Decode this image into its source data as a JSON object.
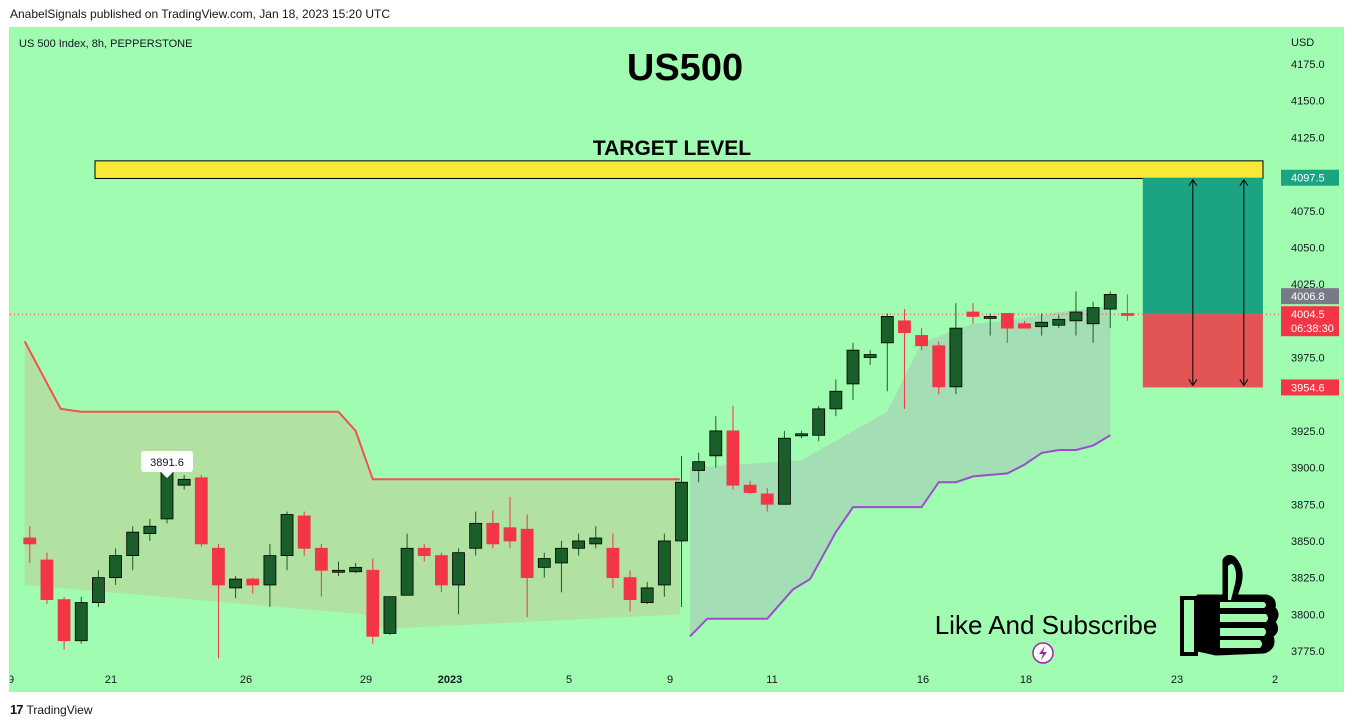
{
  "header": {
    "published": "AnabelSignals published on TradingView.com, Jan 18, 2023 15:20 UTC"
  },
  "footer": {
    "logo": "17",
    "brand": "TradingView"
  },
  "colors": {
    "background": "#a0fcb1",
    "bull_candle": "#1a5e2a",
    "bear_candle": "#f23645",
    "resistance_line": "#f05350",
    "support_line": "#9c4dcc",
    "target_band": "#f7e935",
    "profit_zone": "#1ca382",
    "loss_zone": "#e35454",
    "last_price": "#f23645"
  },
  "chart_data": {
    "type": "candlestick",
    "symbol_info": "US 500 Index, 8h, PEPPERSTONE",
    "title": "US500",
    "currency": "USD",
    "yticks": [
      "4175.0",
      "4150.0",
      "4125.0",
      "4075.0",
      "4050.0",
      "4025.0",
      "3975.0",
      "3925.0",
      "3900.0",
      "3875.0",
      "3850.0",
      "3825.0",
      "3800.0",
      "3775.0"
    ],
    "ylim": [
      3766,
      4187
    ],
    "xticks": [
      "9",
      "21",
      "26",
      "29",
      "2023",
      "5",
      "9",
      "11",
      "16",
      "18",
      "23",
      "2"
    ],
    "candles": [
      [
        3852,
        3848,
        3860,
        3835
      ],
      [
        3837,
        3810,
        3842,
        3807
      ],
      [
        3810,
        3782,
        3812,
        3776
      ],
      [
        3782,
        3808,
        3812,
        3780
      ],
      [
        3808,
        3825,
        3830,
        3805
      ],
      [
        3825,
        3840,
        3845,
        3820
      ],
      [
        3840,
        3856,
        3860,
        3830
      ],
      [
        3855,
        3860,
        3865,
        3850
      ],
      [
        3865,
        3897,
        3900,
        3862
      ],
      [
        3888,
        3892,
        3895,
        3885
      ],
      [
        3893,
        3848,
        3895,
        3846
      ],
      [
        3845,
        3820,
        3848,
        3770
      ],
      [
        3818,
        3824,
        3826,
        3811
      ],
      [
        3824,
        3820,
        3825,
        3814
      ],
      [
        3820,
        3840,
        3848,
        3805
      ],
      [
        3840,
        3868,
        3870,
        3830
      ],
      [
        3867,
        3845,
        3870,
        3840
      ],
      [
        3845,
        3830,
        3848,
        3812
      ],
      [
        3829,
        3830,
        3836,
        3826
      ],
      [
        3829,
        3832,
        3835,
        3828
      ],
      [
        3830,
        3785,
        3838,
        3780
      ],
      [
        3787,
        3812,
        3812,
        3786
      ],
      [
        3813,
        3845,
        3855,
        3813
      ],
      [
        3845,
        3840,
        3848,
        3836
      ],
      [
        3840,
        3820,
        3842,
        3815
      ],
      [
        3820,
        3842,
        3845,
        3800
      ],
      [
        3845,
        3862,
        3870,
        3840
      ],
      [
        3862,
        3848,
        3871,
        3845
      ],
      [
        3859,
        3850,
        3880,
        3845
      ],
      [
        3858,
        3825,
        3868,
        3798
      ],
      [
        3832,
        3838,
        3842,
        3825
      ],
      [
        3835,
        3845,
        3850,
        3815
      ],
      [
        3845,
        3850,
        3855,
        3840
      ],
      [
        3848,
        3852,
        3860,
        3845
      ],
      [
        3845,
        3825,
        3855,
        3818
      ],
      [
        3825,
        3810,
        3830,
        3802
      ],
      [
        3808,
        3818,
        3822,
        3807
      ],
      [
        3820,
        3850,
        3855,
        3812
      ],
      [
        3850,
        3890,
        3908,
        3805
      ],
      [
        3898,
        3904,
        3910,
        3890
      ],
      [
        3908,
        3925,
        3935,
        3900
      ],
      [
        3925,
        3888,
        3942,
        3885
      ],
      [
        3888,
        3883,
        3891,
        3882
      ],
      [
        3882,
        3875,
        3886,
        3870
      ],
      [
        3875,
        3920,
        3925,
        3880
      ],
      [
        3922,
        3923,
        3925,
        3920
      ],
      [
        3922,
        3940,
        3942,
        3918
      ],
      [
        3940,
        3952,
        3960,
        3935
      ],
      [
        3957,
        3980,
        3985,
        3946
      ],
      [
        3975,
        3977,
        3980,
        3970
      ],
      [
        3985,
        4003,
        4005,
        3952
      ],
      [
        4000,
        3992,
        4008,
        3940
      ],
      [
        3990,
        3983,
        3995,
        3980
      ],
      [
        3983,
        3955,
        3986,
        3950
      ],
      [
        3955,
        3995,
        4012,
        3950
      ],
      [
        4006,
        4003,
        4012,
        3998
      ],
      [
        4002,
        4003,
        4005,
        3990
      ],
      [
        4005,
        3995,
        4005,
        3985
      ],
      [
        3998,
        3995,
        4000,
        3996
      ],
      [
        3996,
        3999,
        4005,
        3990
      ],
      [
        3997,
        4001,
        4004,
        3995
      ],
      [
        4000,
        4006,
        4020,
        3990
      ],
      [
        3998,
        4009,
        4013,
        3985
      ],
      [
        4008,
        4018,
        4020,
        3995
      ],
      [
        4005,
        4004.5,
        4018,
        4000
      ]
    ],
    "resistance_line": [
      [
        -0.3,
        3986
      ],
      [
        1.8,
        3940
      ],
      [
        3,
        3938
      ],
      [
        18,
        3938
      ],
      [
        19,
        3925
      ],
      [
        20,
        3892
      ],
      [
        37.9,
        3892
      ]
    ],
    "support_line": [
      [
        38.5,
        3785
      ],
      [
        39.5,
        3797
      ],
      [
        43,
        3797
      ],
      [
        44.5,
        3817
      ],
      [
        45.5,
        3824
      ],
      [
        47,
        3856
      ],
      [
        48,
        3873
      ],
      [
        50,
        3873
      ],
      [
        52,
        3873
      ],
      [
        53,
        3890
      ],
      [
        54,
        3890
      ],
      [
        55,
        3894
      ],
      [
        57,
        3896
      ],
      [
        58,
        3902
      ],
      [
        59,
        3910
      ],
      [
        60,
        3912
      ],
      [
        61,
        3912
      ],
      [
        62,
        3915
      ],
      [
        63,
        3922
      ]
    ],
    "target_level": {
      "label": "TARGET LEVEL",
      "top": 4109,
      "bottom": 4097
    },
    "position": {
      "entry": 4004.5,
      "target": 4097.5,
      "stop": 3954.6,
      "start_index": 64.9,
      "end_index": 71.9
    },
    "price_labels": {
      "target": "4097.5",
      "ask": "4006.8",
      "last": "4004.5",
      "countdown": "06:38:30",
      "stop": "3954.6"
    },
    "swing_high_label": "3891.6",
    "swing_high_index": 8
  },
  "cta": {
    "text": "Like And Subscribe"
  }
}
